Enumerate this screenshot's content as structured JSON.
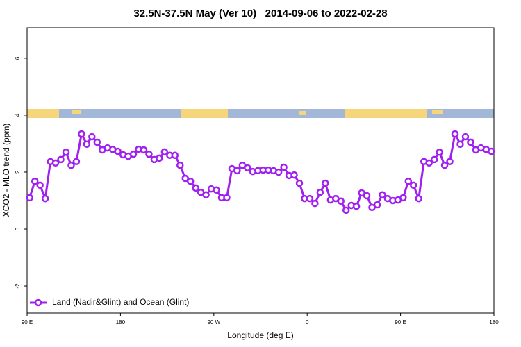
{
  "chart_data": {
    "type": "line",
    "title": "32.5N-37.5N May (Ver 10)   2014-09-06 to 2022-02-28",
    "x_label": "Longitude (deg E)",
    "y_label": "XCO2 - MLO trend (ppm)",
    "x": [
      92.5,
      97.5,
      102.5,
      107.5,
      112.5,
      117.5,
      122.5,
      127.5,
      132.5,
      137.5,
      142.5,
      147.5,
      152.5,
      157.5,
      162.5,
      167.5,
      172.5,
      177.5,
      182.5,
      187.5,
      192.5,
      197.5,
      202.5,
      207.5,
      212.5,
      217.5,
      222.5,
      227.5,
      232.5,
      237.5,
      242.5,
      247.5,
      252.5,
      257.5,
      262.5,
      267.5,
      272.5,
      277.5,
      282.5,
      287.5,
      292.5,
      297.5,
      302.5,
      307.5,
      312.5,
      317.5,
      322.5,
      327.5,
      332.5,
      337.5,
      342.5,
      347.5,
      352.5,
      357.5,
      362.5,
      367.5,
      372.5,
      377.5,
      382.5,
      387.5,
      392.5,
      397.5,
      402.5,
      407.5,
      412.5,
      417.5,
      422.5,
      427.5,
      432.5,
      437.5,
      442.5,
      447.5,
      452.5,
      457.5,
      462.5,
      467.5,
      472.5,
      477.5,
      482.5,
      487.5,
      492.5,
      497.5,
      502.5,
      507.5,
      512.5,
      517.5,
      522.5,
      527.5,
      532.5,
      537.5
    ],
    "series": [
      {
        "name": "Land (Nadir&Glint) and Ocean (Glint)",
        "color": "#a020f0",
        "values": [
          1.1,
          1.68,
          1.54,
          1.07,
          2.37,
          2.32,
          2.44,
          2.7,
          2.24,
          2.37,
          3.34,
          2.98,
          3.24,
          3.05,
          2.78,
          2.85,
          2.8,
          2.73,
          2.61,
          2.56,
          2.63,
          2.8,
          2.78,
          2.63,
          2.44,
          2.49,
          2.71,
          2.59,
          2.59,
          2.24,
          1.78,
          1.68,
          1.44,
          1.29,
          1.2,
          1.41,
          1.37,
          1.1,
          1.1,
          2.12,
          2.05,
          2.24,
          2.15,
          2.02,
          2.05,
          2.07,
          2.07,
          2.05,
          2.0,
          2.17,
          1.88,
          1.9,
          1.61,
          1.07,
          1.07,
          0.9,
          1.29,
          1.61,
          1.02,
          1.07,
          0.98,
          0.66,
          0.83,
          0.8,
          1.27,
          1.17,
          0.76,
          0.85,
          1.2,
          1.07,
          1.0,
          1.02,
          1.1,
          1.68,
          1.54,
          1.07,
          2.37,
          2.32,
          2.44,
          2.7,
          2.24,
          2.37,
          3.34,
          2.98,
          3.24,
          3.05,
          2.78,
          2.85,
          2.8,
          2.73
        ]
      }
    ],
    "xlim": [
      90,
      540
    ],
    "xticks": [
      {
        "value": 90,
        "label": "90 E"
      },
      180,
      {
        "value": 270,
        "label": "90 W"
      },
      {
        "value": 360,
        "label": "0"
      },
      {
        "value": 450,
        "label": "90 E"
      },
      {
        "value": 540,
        "label": "180"
      }
    ],
    "ylim": [
      -2.95,
      7.07
    ],
    "yticks": [
      -2,
      0,
      2,
      4,
      6
    ],
    "legend": "lower left"
  }
}
